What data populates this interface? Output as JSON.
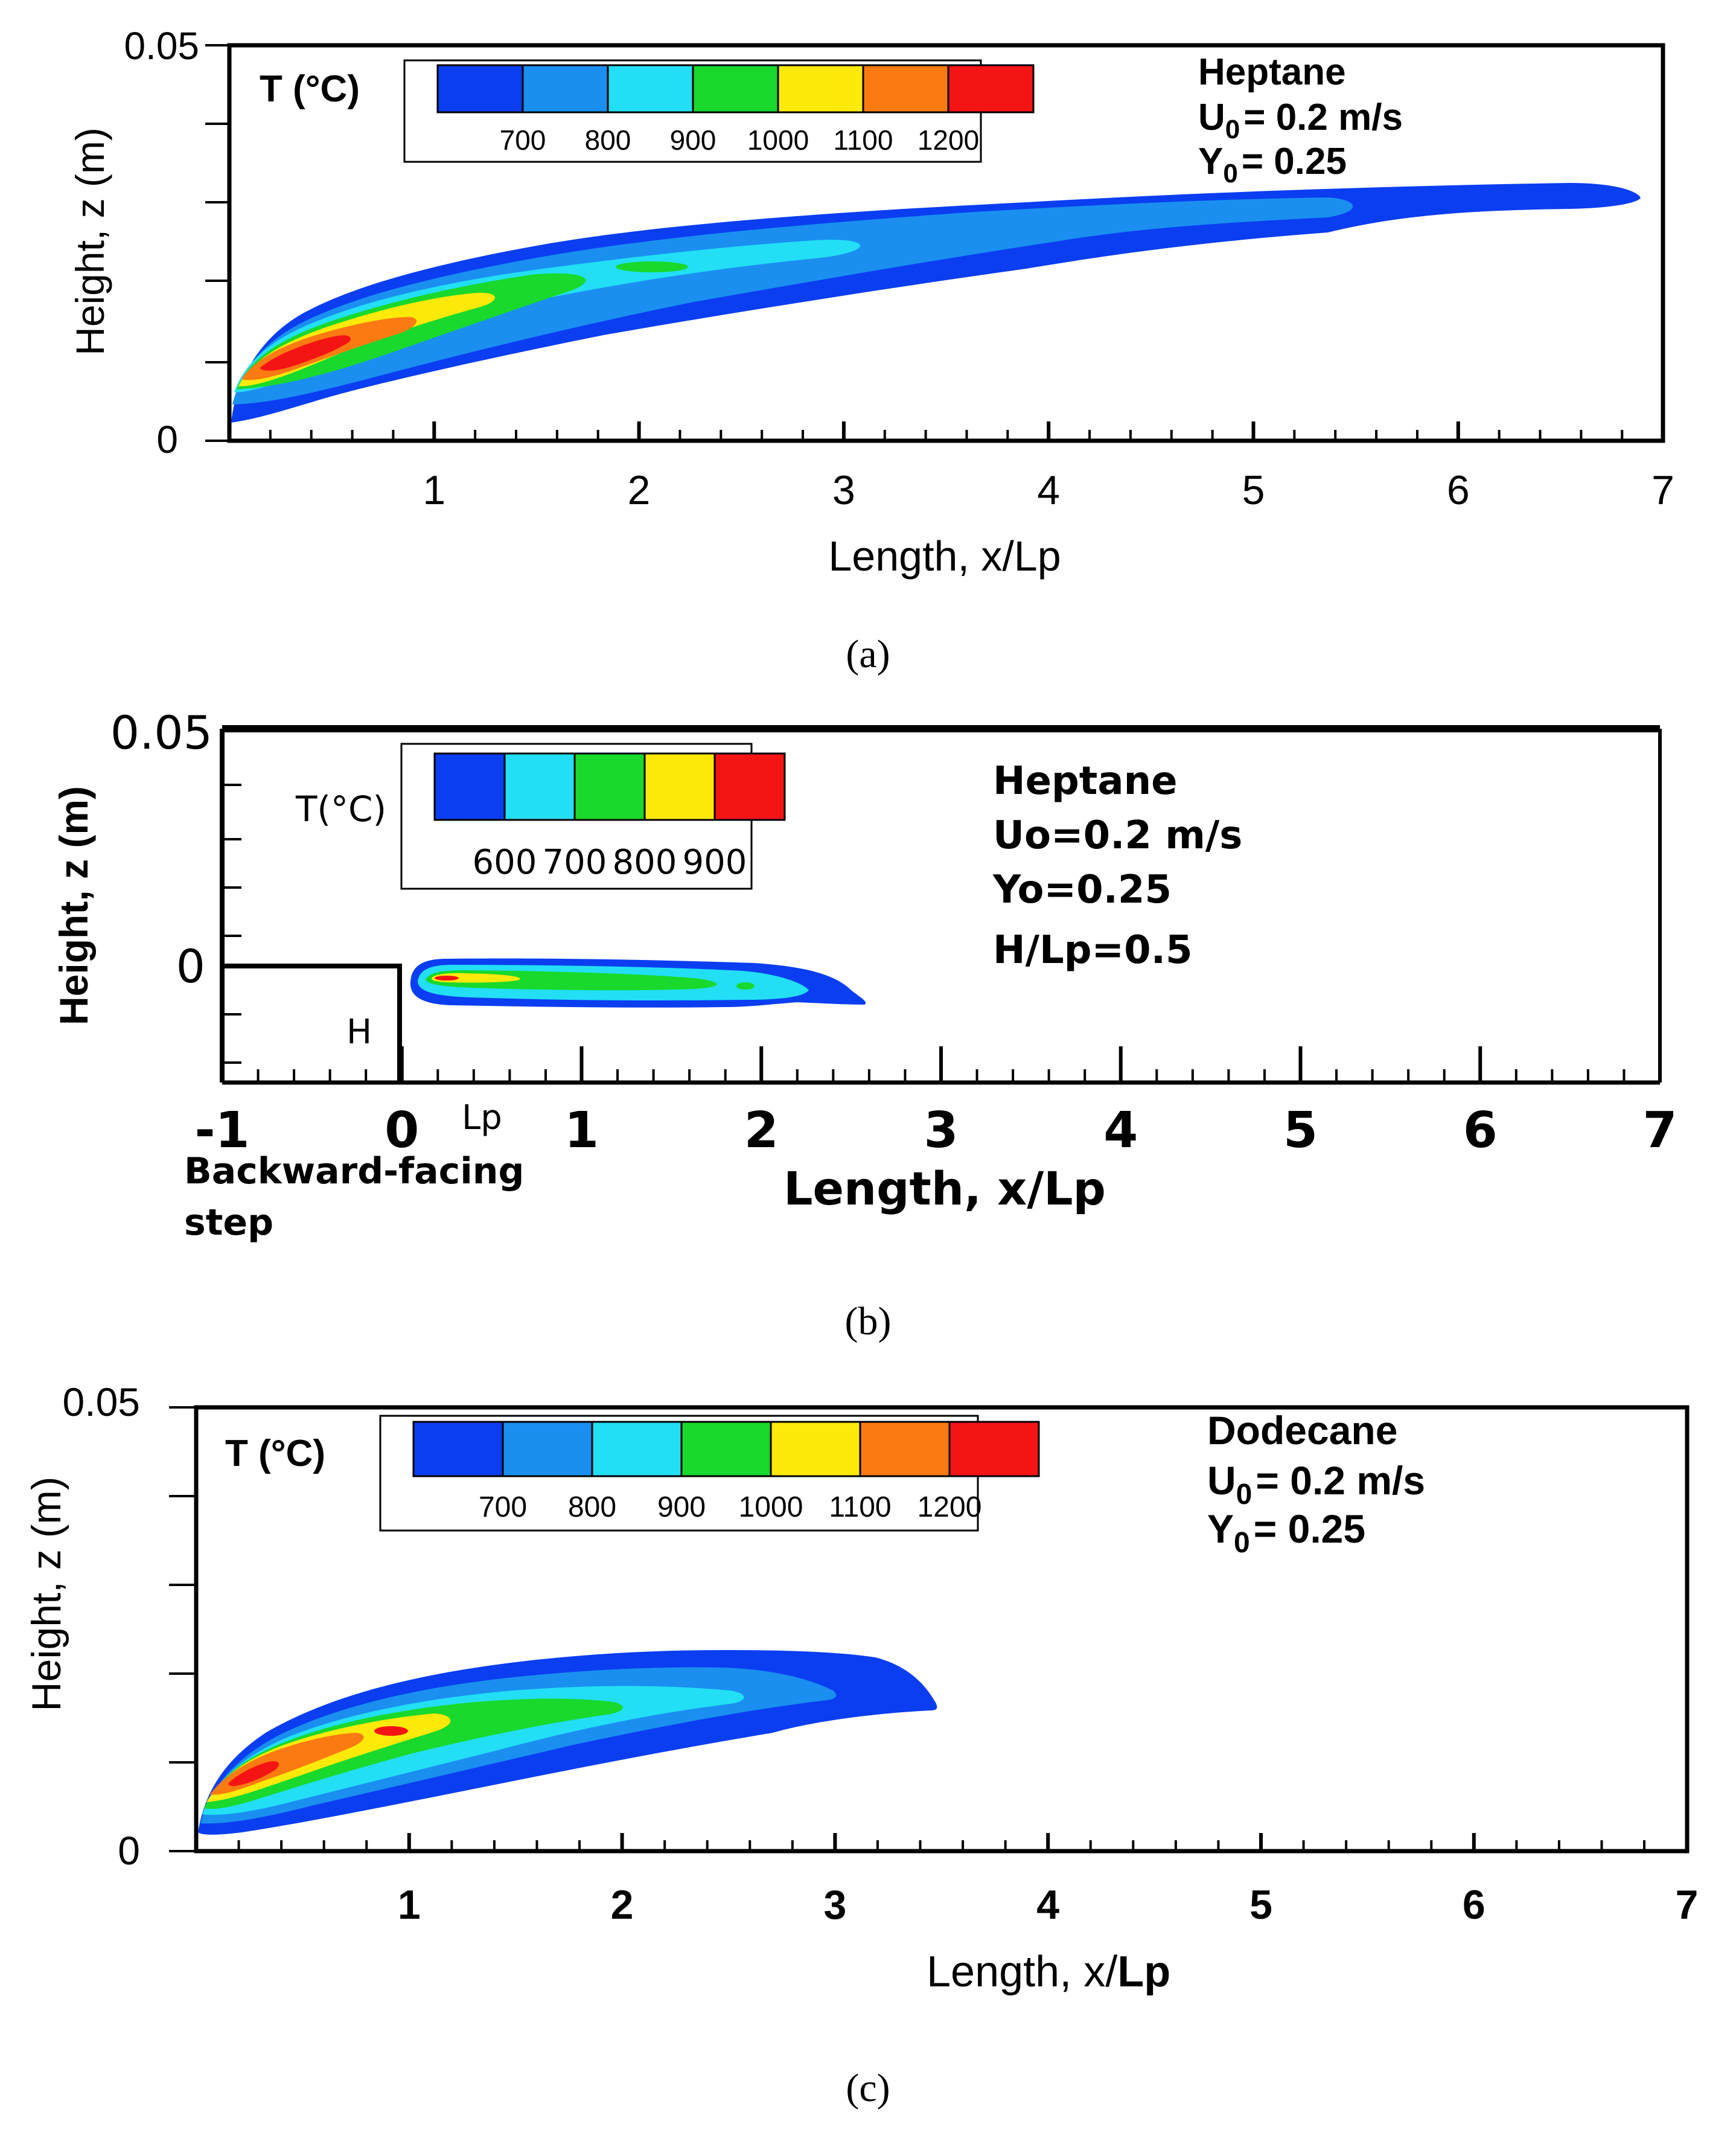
{
  "colors": {
    "frame": "#000000",
    "bands": [
      "#0a3ef0",
      "#1a8ff0",
      "#22dff5",
      "#18d92c",
      "#fde90a",
      "#fb7a12",
      "#f51414"
    ]
  },
  "chart_data": [
    {
      "type": "heatmap",
      "panel": "a",
      "caption": "(a)",
      "title_lines": [
        "Heptane",
        "U0 = 0.2 m/s",
        "Y0 = 0.25"
      ],
      "fuel": "Heptane",
      "param_lines": [
        {
          "symbol": "U",
          "sub": "0",
          "rest": "= 0.2 m/s"
        },
        {
          "symbol": "Y",
          "sub": "0",
          "rest": "= 0.25"
        }
      ],
      "xlabel": "Length, x/Lp",
      "ylabel": "Height, z (m)",
      "xlim": [
        0,
        7
      ],
      "ylim": [
        0,
        0.05
      ],
      "x_ticks": [
        "1",
        "2",
        "3",
        "4",
        "5",
        "6",
        "7"
      ],
      "y_ticks": [
        "0",
        "0.05"
      ],
      "colorbar_title": "T (°C)",
      "colorbar_values": [
        "700",
        "800",
        "900",
        "1000",
        "1100",
        "1200"
      ],
      "flame": {
        "x": [
          0,
          0.5,
          1,
          2,
          3,
          4,
          5,
          5.5,
          6,
          6.9
        ],
        "z_top": [
          0.005,
          0.016,
          0.0205,
          0.0255,
          0.0285,
          0.03,
          0.0315,
          0.032,
          0.032,
          0.031
        ],
        "z_bottom": [
          0.004,
          0.0065,
          0.009,
          0.0145,
          0.0175,
          0.02,
          0.0235,
          0.0265,
          0.029,
          0.03
        ],
        "peak_temperature_band": "1200+",
        "peak_x": 0.4
      }
    },
    {
      "type": "heatmap",
      "panel": "b",
      "caption": "(b)",
      "fuel": "Heptane",
      "param_lines_plain": [
        "Uo=0.2 m/s",
        "Yo=0.25",
        "H/Lp=0.5"
      ],
      "xlabel": "Length, x/Lp",
      "ylabel": "Height, z (m)",
      "xlim": [
        -1,
        7
      ],
      "x_ticks": [
        "-1",
        "0",
        "1",
        "2",
        "3",
        "4",
        "5",
        "6",
        "7"
      ],
      "y_ticks": [
        "0",
        "0.05"
      ],
      "colorbar_title": "T(°C)",
      "colorbar_values": [
        "600",
        "700",
        "800",
        "900"
      ],
      "step_label": "H",
      "lp_label": "Lp",
      "step_caption_lines": [
        "Backward-facing",
        "step"
      ],
      "flame": {
        "x": [
          0.1,
          0.5,
          1,
          1.5,
          2,
          2.5
        ],
        "peak_temperature_band": "900+"
      }
    },
    {
      "type": "heatmap",
      "panel": "c",
      "caption": "(c)",
      "fuel": "Dodecane",
      "param_lines": [
        {
          "symbol": "U",
          "sub": "0",
          "rest": "= 0.2 m/s"
        },
        {
          "symbol": "Y",
          "sub": "0",
          "rest": "= 0.25"
        }
      ],
      "xlabel_parts": [
        "Length, x/",
        "Lp"
      ],
      "ylabel": "Height, z (m)",
      "xlim": [
        0,
        7
      ],
      "ylim": [
        0,
        0.05
      ],
      "x_ticks": [
        "1",
        "2",
        "3",
        "4",
        "5",
        "6",
        "7"
      ],
      "y_ticks": [
        "0",
        "0.05"
      ],
      "colorbar_title": "T (°C)",
      "colorbar_values": [
        "700",
        "800",
        "900",
        "1000",
        "1100",
        "1200"
      ],
      "flame": {
        "x": [
          0,
          0.5,
          1,
          2,
          3,
          3.45
        ],
        "z_top": [
          0.004,
          0.0135,
          0.0175,
          0.0215,
          0.0215,
          0.017
        ],
        "z_bottom": [
          0.003,
          0.004,
          0.006,
          0.0105,
          0.0145,
          0.017
        ],
        "peak_temperature_band": "1200+",
        "peak_x": 0.35
      }
    }
  ]
}
